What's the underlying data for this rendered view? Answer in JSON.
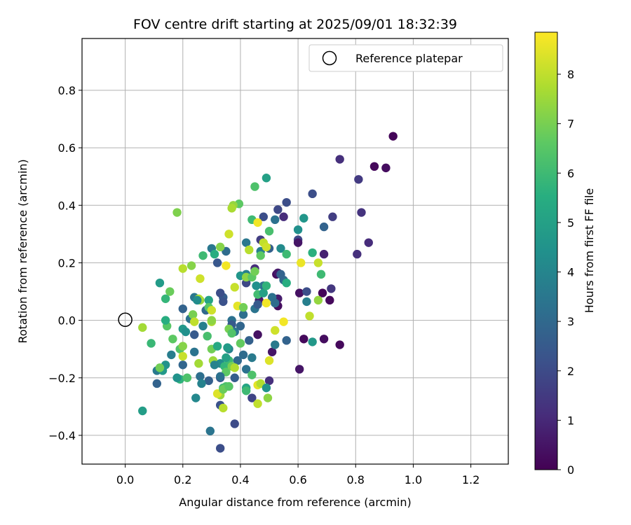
{
  "chart_data": {
    "type": "scatter",
    "title": "FOV centre drift starting at 2025/09/01 18:32:39",
    "xlabel": "Angular distance from reference (arcmin)",
    "ylabel": "Rotation from reference (arcmin)",
    "xlim": [
      -0.15,
      1.33
    ],
    "ylim": [
      -0.5,
      0.98
    ],
    "xticks": [
      0.0,
      0.2,
      0.4,
      0.6,
      0.8,
      1.0,
      1.2
    ],
    "xtick_labels": [
      "0.0",
      "0.2",
      "0.4",
      "0.6",
      "0.8",
      "1.0",
      "1.2"
    ],
    "yticks": [
      -0.4,
      -0.2,
      0.0,
      0.2,
      0.4,
      0.6,
      0.8
    ],
    "ytick_labels": [
      "−0.4",
      "−0.2",
      "0.0",
      "0.2",
      "0.4",
      "0.6",
      "0.8"
    ],
    "grid": true,
    "legend": {
      "placement": "upper right",
      "entries": [
        "Reference platepar"
      ]
    },
    "reference_point": {
      "x": 0.0,
      "y": 0.0,
      "label": "Reference platepar"
    },
    "colorbar": {
      "label": "Hours from first FF file",
      "colormap": "viridis",
      "range": [
        0,
        8.85
      ],
      "ticks": [
        0,
        1,
        2,
        3,
        4,
        5,
        6,
        7,
        8
      ],
      "tick_labels": [
        "0",
        "1",
        "2",
        "3",
        "4",
        "5",
        "6",
        "7",
        "8"
      ]
    },
    "points_format": [
      "x (arcmin)",
      "y (arcmin)",
      "hours"
    ],
    "points": [
      [
        0.93,
        0.64,
        0.1
      ],
      [
        0.865,
        0.535,
        0.2
      ],
      [
        0.905,
        0.53,
        0.3
      ],
      [
        0.745,
        0.56,
        1.2
      ],
      [
        0.81,
        0.49,
        1.5
      ],
      [
        0.82,
        0.375,
        1.3
      ],
      [
        0.845,
        0.27,
        1.1
      ],
      [
        0.805,
        0.23,
        1.2
      ],
      [
        0.745,
        -0.085,
        0.2
      ],
      [
        0.69,
        -0.065,
        0.3
      ],
      [
        0.71,
        0.07,
        0.2
      ],
      [
        0.685,
        0.095,
        0.1
      ],
      [
        0.62,
        -0.065,
        0.2
      ],
      [
        0.605,
        -0.17,
        0.5
      ],
      [
        0.605,
        0.095,
        0.4
      ],
      [
        0.63,
        0.1,
        2.1
      ],
      [
        0.715,
        0.11,
        1.4
      ],
      [
        0.72,
        0.36,
        1.6
      ],
      [
        0.69,
        0.325,
        2.8
      ],
      [
        0.69,
        0.23,
        0.8
      ],
      [
        0.65,
        0.44,
        2.1
      ],
      [
        0.6,
        0.28,
        1.9
      ],
      [
        0.6,
        0.27,
        0.5
      ],
      [
        0.56,
        0.41,
        2.1
      ],
      [
        0.53,
        0.385,
        1.9
      ],
      [
        0.55,
        0.36,
        1.1
      ],
      [
        0.525,
        0.16,
        0.3
      ],
      [
        0.53,
        0.165,
        0.6
      ],
      [
        0.53,
        0.05,
        0.3
      ],
      [
        0.53,
        0.075,
        0.7
      ],
      [
        0.51,
        -0.11,
        0.5
      ],
      [
        0.5,
        -0.21,
        1.2
      ],
      [
        0.46,
        -0.05,
        0.4
      ],
      [
        0.465,
        0.07,
        0.6
      ],
      [
        0.45,
        0.18,
        1.1
      ],
      [
        0.48,
        0.36,
        2.1
      ],
      [
        0.47,
        0.28,
        1.6
      ],
      [
        0.42,
        0.13,
        1.9
      ],
      [
        0.44,
        -0.27,
        1.8
      ],
      [
        0.38,
        -0.36,
        2.0
      ],
      [
        0.33,
        -0.445,
        2.1
      ],
      [
        0.33,
        -0.295,
        2.2
      ],
      [
        0.295,
        -0.385,
        3.4
      ],
      [
        0.33,
        -0.2,
        2.4
      ],
      [
        0.29,
        -0.21,
        2.7
      ],
      [
        0.26,
        -0.195,
        3.2
      ],
      [
        0.265,
        -0.22,
        3.9
      ],
      [
        0.245,
        -0.27,
        4.1
      ],
      [
        0.24,
        -0.11,
        3.4
      ],
      [
        0.2,
        -0.155,
        2.9
      ],
      [
        0.11,
        -0.22,
        2.8
      ],
      [
        0.11,
        -0.175,
        3.6
      ],
      [
        0.16,
        -0.12,
        3.7
      ],
      [
        0.14,
        -0.155,
        4.5
      ],
      [
        0.06,
        -0.315,
        4.9
      ],
      [
        0.2,
        0.04,
        2.8
      ],
      [
        0.225,
        0.005,
        3.3
      ],
      [
        0.24,
        0.08,
        3.5
      ],
      [
        0.24,
        -0.05,
        2.5
      ],
      [
        0.28,
        0.035,
        3.0
      ],
      [
        0.3,
        0.25,
        3.5
      ],
      [
        0.32,
        0.2,
        2.4
      ],
      [
        0.34,
        0.08,
        2.6
      ],
      [
        0.34,
        0.065,
        2.2
      ],
      [
        0.33,
        0.095,
        2.1
      ],
      [
        0.35,
        0.24,
        3.1
      ],
      [
        0.37,
        0.0,
        3.3
      ],
      [
        0.37,
        -0.015,
        2.5
      ],
      [
        0.38,
        -0.04,
        3.5
      ],
      [
        0.36,
        -0.1,
        3.8
      ],
      [
        0.39,
        -0.14,
        3.0
      ],
      [
        0.38,
        -0.2,
        2.6
      ],
      [
        0.42,
        -0.17,
        3.3
      ],
      [
        0.41,
        -0.12,
        3.1
      ],
      [
        0.4,
        -0.02,
        2.9
      ],
      [
        0.42,
        0.27,
        3.5
      ],
      [
        0.42,
        0.16,
        3.8
      ],
      [
        0.41,
        0.02,
        3.2
      ],
      [
        0.43,
        -0.07,
        2.7
      ],
      [
        0.44,
        -0.13,
        3.6
      ],
      [
        0.45,
        0.04,
        3.4
      ],
      [
        0.46,
        0.055,
        2.5
      ],
      [
        0.47,
        0.24,
        3.8
      ],
      [
        0.5,
        0.25,
        2.7
      ],
      [
        0.48,
        0.12,
        3.2
      ],
      [
        0.52,
        -0.085,
        3.6
      ],
      [
        0.51,
        0.08,
        3.3
      ],
      [
        0.55,
        0.14,
        3.0
      ],
      [
        0.56,
        -0.07,
        2.8
      ],
      [
        0.54,
        0.25,
        4.2
      ],
      [
        0.6,
        0.315,
        4.4
      ],
      [
        0.62,
        0.355,
        4.6
      ],
      [
        0.63,
        0.065,
        3.8
      ],
      [
        0.65,
        -0.075,
        4.7
      ],
      [
        0.65,
        0.235,
        5.6
      ],
      [
        0.68,
        0.16,
        6.0
      ],
      [
        0.49,
        0.495,
        5.0
      ],
      [
        0.45,
        0.465,
        6.3
      ],
      [
        0.5,
        0.31,
        6.2
      ],
      [
        0.44,
        0.35,
        6.0
      ],
      [
        0.395,
        0.405,
        6.6
      ],
      [
        0.375,
        0.4,
        7.4
      ],
      [
        0.37,
        0.39,
        7.7
      ],
      [
        0.18,
        0.375,
        7.1
      ],
      [
        0.14,
        0.075,
        5.8
      ],
      [
        0.155,
        0.1,
        6.8
      ],
      [
        0.12,
        0.13,
        4.8
      ],
      [
        0.165,
        -0.065,
        6.6
      ],
      [
        0.13,
        -0.175,
        4.7
      ],
      [
        0.19,
        -0.205,
        5.7
      ],
      [
        0.18,
        -0.2,
        4.5
      ],
      [
        0.215,
        -0.2,
        6.3
      ],
      [
        0.19,
        -0.1,
        6.4
      ],
      [
        0.2,
        -0.125,
        8.1
      ],
      [
        0.2,
        -0.09,
        7.2
      ],
      [
        0.09,
        -0.08,
        5.9
      ],
      [
        0.145,
        -0.02,
        6.5
      ],
      [
        0.14,
        0.0,
        5.5
      ],
      [
        0.2,
        -0.03,
        4.7
      ],
      [
        0.21,
        -0.04,
        4.4
      ],
      [
        0.06,
        -0.025,
        7.6
      ],
      [
        0.12,
        -0.165,
        6.9
      ],
      [
        0.2,
        0.18,
        7.9
      ],
      [
        0.23,
        0.19,
        7.2
      ],
      [
        0.27,
        0.225,
        6.0
      ],
      [
        0.31,
        0.23,
        5.5
      ],
      [
        0.29,
        0.07,
        5.1
      ],
      [
        0.29,
        0.045,
        6.5
      ],
      [
        0.3,
        0.035,
        8.2
      ],
      [
        0.26,
        0.07,
        7.4
      ],
      [
        0.255,
        0.075,
        7.8
      ],
      [
        0.235,
        0.02,
        7.0
      ],
      [
        0.24,
        -0.005,
        8.0
      ],
      [
        0.255,
        -0.15,
        7.6
      ],
      [
        0.285,
        -0.055,
        6.2
      ],
      [
        0.3,
        -0.1,
        6.9
      ],
      [
        0.305,
        -0.14,
        7.5
      ],
      [
        0.32,
        -0.09,
        5.3
      ],
      [
        0.33,
        -0.15,
        4.2
      ],
      [
        0.345,
        -0.16,
        5.8
      ],
      [
        0.35,
        -0.18,
        6.6
      ],
      [
        0.36,
        -0.14,
        6.0
      ],
      [
        0.37,
        -0.16,
        7.0
      ],
      [
        0.34,
        -0.235,
        5.9
      ],
      [
        0.33,
        -0.26,
        7.5
      ],
      [
        0.34,
        -0.305,
        7.9
      ],
      [
        0.35,
        -0.23,
        6.3
      ],
      [
        0.355,
        -0.095,
        4.8
      ],
      [
        0.38,
        -0.165,
        7.8
      ],
      [
        0.4,
        -0.08,
        6.7
      ],
      [
        0.42,
        -0.235,
        5.2
      ],
      [
        0.42,
        -0.245,
        6.0
      ],
      [
        0.44,
        -0.19,
        6.3
      ],
      [
        0.46,
        -0.225,
        8.5
      ],
      [
        0.47,
        -0.22,
        7.8
      ],
      [
        0.49,
        -0.235,
        4.5
      ],
      [
        0.495,
        -0.27,
        7.3
      ],
      [
        0.46,
        -0.29,
        8.0
      ],
      [
        0.5,
        -0.14,
        8.4
      ],
      [
        0.49,
        0.06,
        8.7
      ],
      [
        0.38,
        0.115,
        8.1
      ],
      [
        0.36,
        0.3,
        8.2
      ],
      [
        0.36,
        -0.03,
        7.0
      ],
      [
        0.37,
        -0.045,
        6.4
      ],
      [
        0.39,
        0.05,
        8.5
      ],
      [
        0.4,
        0.155,
        4.6
      ],
      [
        0.41,
        0.045,
        6.9
      ],
      [
        0.42,
        0.15,
        7.3
      ],
      [
        0.43,
        0.245,
        7.9
      ],
      [
        0.44,
        0.15,
        6.6
      ],
      [
        0.45,
        0.17,
        6.9
      ],
      [
        0.455,
        0.12,
        4.4
      ],
      [
        0.46,
        0.09,
        6.1
      ],
      [
        0.47,
        0.225,
        6.6
      ],
      [
        0.48,
        0.27,
        8.0
      ],
      [
        0.49,
        0.255,
        8.2
      ],
      [
        0.48,
        0.095,
        5.0
      ],
      [
        0.49,
        0.12,
        5.7
      ],
      [
        0.46,
        0.34,
        8.7
      ],
      [
        0.52,
        0.35,
        3.3
      ],
      [
        0.52,
        0.06,
        3.1
      ],
      [
        0.54,
        0.16,
        2.8
      ],
      [
        0.55,
        -0.005,
        8.7
      ],
      [
        0.52,
        -0.035,
        8.2
      ],
      [
        0.56,
        0.23,
        6.0
      ],
      [
        0.56,
        0.13,
        5.5
      ],
      [
        0.61,
        0.2,
        8.6
      ],
      [
        0.64,
        0.015,
        8.0
      ],
      [
        0.67,
        0.2,
        8.1
      ],
      [
        0.67,
        0.07,
        7.4
      ],
      [
        0.35,
        0.19,
        8.7
      ],
      [
        0.33,
        0.255,
        7.2
      ],
      [
        0.26,
        0.145,
        8.2
      ],
      [
        0.27,
        -0.02,
        3.8
      ],
      [
        0.31,
        -0.155,
        3.9
      ],
      [
        0.3,
        -0.005,
        7.7
      ],
      [
        0.3,
        0.0,
        7.3
      ],
      [
        0.25,
        0.07,
        4.3
      ],
      [
        0.33,
        -0.195,
        3.3
      ],
      [
        0.32,
        -0.255,
        8.4
      ],
      [
        0.34,
        -0.24,
        6.8
      ],
      [
        0.36,
        -0.23,
        6.5
      ],
      [
        0.35,
        -0.13,
        5.0
      ]
    ]
  }
}
